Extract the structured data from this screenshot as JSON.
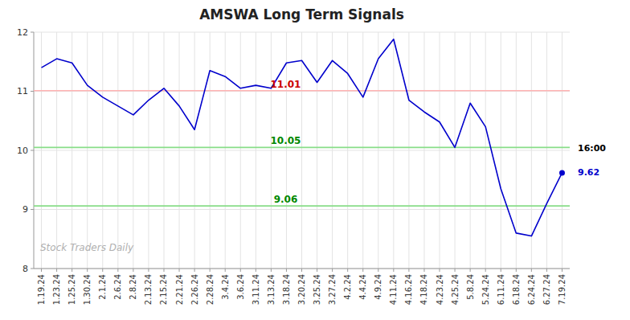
{
  "chart_data": {
    "type": "line",
    "title": "AMSWA Long Term Signals",
    "categories": [
      "1.19.24",
      "1.23.24",
      "1.25.24",
      "1.30.24",
      "2.1.24",
      "2.6.24",
      "2.8.24",
      "2.13.24",
      "2.15.24",
      "2.21.24",
      "2.26.24",
      "2.28.24",
      "3.4.24",
      "3.6.24",
      "3.11.24",
      "3.13.24",
      "3.18.24",
      "3.20.24",
      "3.25.24",
      "3.27.24",
      "4.2.24",
      "4.4.24",
      "4.9.24",
      "4.11.24",
      "4.16.24",
      "4.18.24",
      "4.23.24",
      "4.25.24",
      "5.8.24",
      "5.24.24",
      "6.11.24",
      "6.18.24",
      "6.24.24",
      "6.27.24",
      "7.19.24"
    ],
    "values": [
      11.4,
      11.55,
      11.48,
      11.1,
      10.9,
      10.75,
      10.6,
      10.85,
      11.05,
      10.75,
      10.35,
      11.35,
      11.25,
      11.05,
      11.1,
      11.05,
      11.48,
      11.52,
      11.15,
      11.52,
      11.3,
      10.9,
      11.55,
      11.88,
      10.85,
      10.65,
      10.48,
      10.05,
      10.8,
      10.4,
      9.35,
      8.6,
      8.55,
      9.1,
      9.62
    ],
    "color": "#0000cc",
    "ylim": [
      8,
      12
    ],
    "yticks": [
      8,
      9,
      10,
      11,
      12
    ],
    "grid": true,
    "hlines": [
      {
        "value": 11.01,
        "label": "11.01",
        "color": "#ffb3b3",
        "label_color": "#cc0000"
      },
      {
        "value": 10.05,
        "label": "10.05",
        "color": "#88dd88",
        "label_color": "#008800"
      },
      {
        "value": 9.06,
        "label": "9.06",
        "color": "#88dd88",
        "label_color": "#008800"
      }
    ],
    "last_price": "9.62",
    "last_time": "16:00",
    "watermark": "Stock Traders Daily",
    "watermark_color": "#b0b0b0"
  }
}
